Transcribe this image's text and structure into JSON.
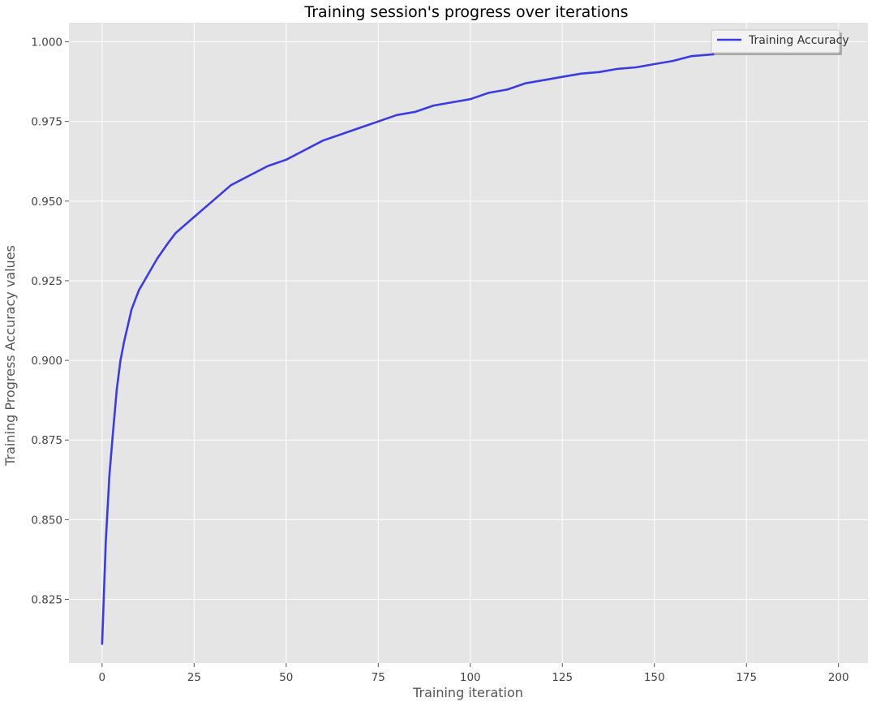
{
  "chart_data": {
    "type": "line",
    "title": "Training session's progress over iterations",
    "xlabel": "Training iteration",
    "ylabel": "Training Progress Accuracy values",
    "xlim": [
      -9,
      208
    ],
    "ylim": [
      0.805,
      1.006
    ],
    "xticks": [
      0,
      25,
      50,
      75,
      100,
      125,
      150,
      175,
      200
    ],
    "yticks": [
      0.825,
      0.85,
      0.875,
      0.9,
      0.925,
      0.95,
      0.975,
      1.0
    ],
    "ytick_labels": [
      "0.825",
      "0.850",
      "0.875",
      "0.900",
      "0.925",
      "0.950",
      "0.975",
      "1.000"
    ],
    "grid": true,
    "legend_position": "top-right",
    "background_color": "#e5e5e5",
    "grid_color": "#ffffff",
    "series": [
      {
        "name": "Training Accuracy",
        "color": "#3a3ae8",
        "x": [
          0,
          1,
          2,
          3,
          4,
          5,
          6,
          8,
          10,
          12,
          15,
          18,
          20,
          25,
          30,
          35,
          40,
          45,
          50,
          55,
          60,
          65,
          70,
          75,
          80,
          85,
          90,
          95,
          100,
          105,
          110,
          115,
          120,
          125,
          130,
          135,
          140,
          145,
          150,
          155,
          160,
          165,
          170,
          175,
          180,
          185,
          190,
          195,
          199
        ],
        "values": [
          0.811,
          0.843,
          0.864,
          0.878,
          0.891,
          0.9,
          0.906,
          0.916,
          0.922,
          0.926,
          0.932,
          0.937,
          0.94,
          0.945,
          0.95,
          0.955,
          0.958,
          0.961,
          0.963,
          0.966,
          0.969,
          0.971,
          0.973,
          0.975,
          0.977,
          0.978,
          0.98,
          0.981,
          0.982,
          0.984,
          0.985,
          0.987,
          0.988,
          0.989,
          0.99,
          0.9905,
          0.9915,
          0.992,
          0.993,
          0.994,
          0.9955,
          0.996,
          0.9965,
          0.997,
          0.9973,
          0.9976,
          0.998,
          0.9983,
          0.9985
        ]
      }
    ]
  }
}
